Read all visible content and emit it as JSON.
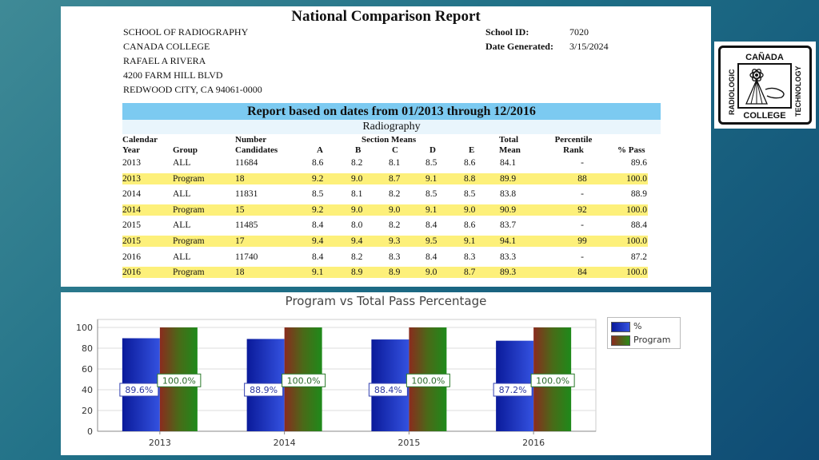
{
  "report": {
    "title": "National Comparison Report",
    "school_address": [
      "SCHOOL OF RADIOGRAPHY",
      "CANADA COLLEGE",
      "RAFAEL A RIVERA",
      "4200 FARM HILL BLVD",
      "REDWOOD CITY, CA 94061-0000"
    ],
    "school_id_label": "School ID:",
    "school_id": "7020",
    "date_generated_label": "Date Generated:",
    "date_generated": "3/15/2024",
    "banner": "Report based on dates from 01/2013 through 12/2016",
    "subtitle": "Radiography",
    "headers": {
      "calendar": "Calendar",
      "year": "Year",
      "group": "Group",
      "number": "Number",
      "candidates": "Candidates",
      "section_means": "Section Means",
      "a": "A",
      "b": "B",
      "c": "C",
      "d": "D",
      "e": "E",
      "total": "Total",
      "mean": "Mean",
      "percentile": "Percentile",
      "rank": "Rank",
      "pass": "% Pass"
    },
    "rows": [
      {
        "year": "2013",
        "group": "ALL",
        "candidates": "11684",
        "a": "8.6",
        "b": "8.2",
        "c": "8.1",
        "d": "8.5",
        "e": "8.6",
        "mean": "84.1",
        "rank": "-",
        "pass": "89.6",
        "highlight": false
      },
      {
        "year": "2013",
        "group": "Program",
        "candidates": "18",
        "a": "9.2",
        "b": "9.0",
        "c": "8.7",
        "d": "9.1",
        "e": "8.8",
        "mean": "89.9",
        "rank": "88",
        "pass": "100.0",
        "highlight": true
      },
      {
        "year": "2014",
        "group": "ALL",
        "candidates": "11831",
        "a": "8.5",
        "b": "8.1",
        "c": "8.2",
        "d": "8.5",
        "e": "8.5",
        "mean": "83.8",
        "rank": "-",
        "pass": "88.9",
        "highlight": false
      },
      {
        "year": "2014",
        "group": "Program",
        "candidates": "15",
        "a": "9.2",
        "b": "9.0",
        "c": "9.0",
        "d": "9.1",
        "e": "9.0",
        "mean": "90.9",
        "rank": "92",
        "pass": "100.0",
        "highlight": true
      },
      {
        "year": "2015",
        "group": "ALL",
        "candidates": "11485",
        "a": "8.4",
        "b": "8.0",
        "c": "8.2",
        "d": "8.4",
        "e": "8.6",
        "mean": "83.7",
        "rank": "-",
        "pass": "88.4",
        "highlight": false
      },
      {
        "year": "2015",
        "group": "Program",
        "candidates": "17",
        "a": "9.4",
        "b": "9.4",
        "c": "9.3",
        "d": "9.5",
        "e": "9.1",
        "mean": "94.1",
        "rank": "99",
        "pass": "100.0",
        "highlight": true
      },
      {
        "year": "2016",
        "group": "ALL",
        "candidates": "11740",
        "a": "8.4",
        "b": "8.2",
        "c": "8.3",
        "d": "8.4",
        "e": "8.3",
        "mean": "83.3",
        "rank": "-",
        "pass": "87.2",
        "highlight": false
      },
      {
        "year": "2016",
        "group": "Program",
        "candidates": "18",
        "a": "9.1",
        "b": "8.9",
        "c": "8.9",
        "d": "9.0",
        "e": "8.7",
        "mean": "89.3",
        "rank": "84",
        "pass": "100.0",
        "highlight": true
      }
    ]
  },
  "logo": {
    "top": "CAÑADA",
    "left": "RADIOLOGIC",
    "right": "TECHNOLOGY",
    "bottom": "COLLEGE"
  },
  "colors": {
    "highlight": "#fdf07a",
    "banner": "#7ccaf1",
    "series_pct": "#1a2fc4",
    "series_program": "#2e7d1a"
  },
  "chart_data": {
    "type": "bar",
    "title": "Program vs Total Pass Percentage",
    "categories": [
      "2013",
      "2014",
      "2015",
      "2016"
    ],
    "series": [
      {
        "name": "%",
        "values": [
          89.6,
          88.9,
          88.4,
          87.2
        ],
        "labels": [
          "89.6%",
          "88.9%",
          "88.4%",
          "87.2%"
        ]
      },
      {
        "name": "Program",
        "values": [
          100.0,
          100.0,
          100.0,
          100.0
        ],
        "labels": [
          "100.0%",
          "100.0%",
          "100.0%",
          "100.0%"
        ]
      }
    ],
    "yticks": [
      "0",
      "20",
      "40",
      "60",
      "80",
      "100"
    ],
    "ylim": [
      0,
      100
    ],
    "legend": "right",
    "xlabel": "",
    "ylabel": ""
  }
}
